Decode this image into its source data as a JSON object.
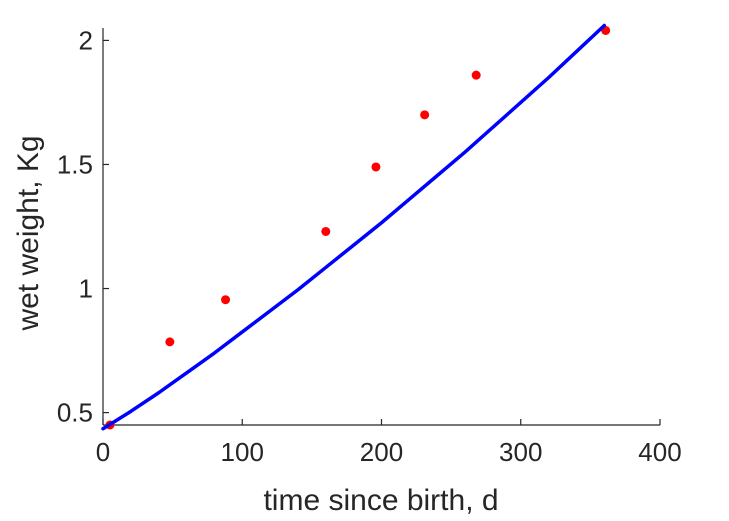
{
  "chart_data": {
    "type": "scatter",
    "title": "",
    "xlabel": "time since birth, d",
    "ylabel": "wet weight, Kg",
    "xlim": [
      0,
      400
    ],
    "ylim": [
      0.45,
      2.05
    ],
    "xticks": [
      0,
      100,
      200,
      300,
      400
    ],
    "xtick_labels": [
      "0",
      "100",
      "200",
      "300",
      "400"
    ],
    "yticks": [
      0.5,
      1,
      1.5,
      2
    ],
    "ytick_labels": [
      "0.5",
      "1",
      "1.5",
      "2"
    ],
    "grid": false,
    "legend": "none",
    "series": [
      {
        "kind": "scatter",
        "color": "#ff0000",
        "x": [
          5,
          48,
          88,
          160,
          196,
          231,
          268,
          361
        ],
        "y": [
          0.45,
          0.785,
          0.955,
          1.23,
          1.49,
          1.7,
          1.86,
          2.04
        ]
      },
      {
        "kind": "line",
        "color": "#0000ff",
        "x": [
          0,
          20,
          40,
          60,
          80,
          100,
          120,
          140,
          160,
          180,
          200,
          220,
          240,
          260,
          280,
          300,
          320,
          340,
          360
        ],
        "y": [
          0.435,
          0.505,
          0.58,
          0.66,
          0.74,
          0.825,
          0.91,
          0.995,
          1.085,
          1.175,
          1.265,
          1.36,
          1.455,
          1.55,
          1.65,
          1.75,
          1.85,
          1.955,
          2.06
        ]
      }
    ]
  }
}
